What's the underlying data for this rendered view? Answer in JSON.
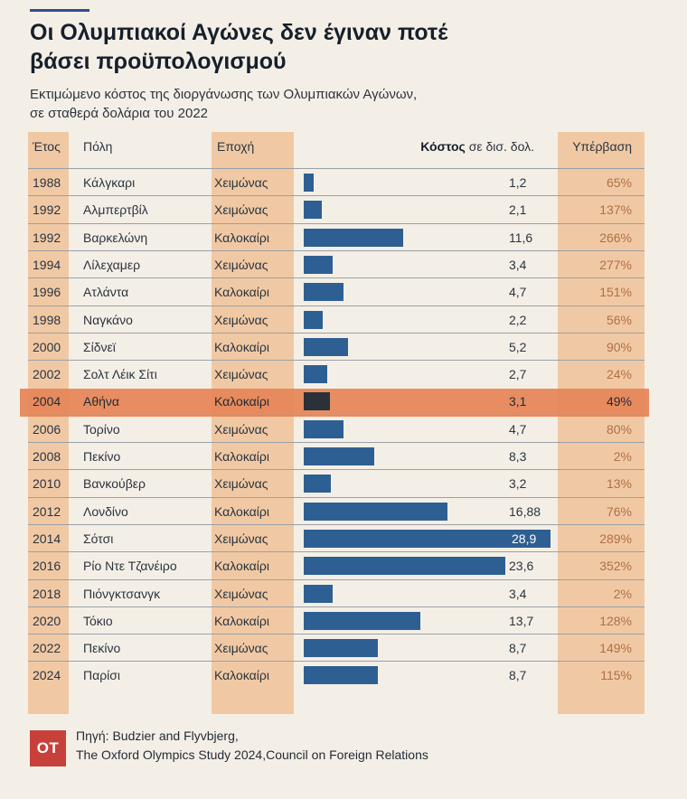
{
  "title_line1": "Οι Ολυμπιακοί Αγώνες δεν έγιναν ποτέ",
  "title_line2": "βάσει προϋπολογισμού",
  "subtitle_line1": "Εκτιμώμενο κόστος της διοργάνωσης των Ολυμπιακών Αγώνων,",
  "subtitle_line2": "σε σταθερά δολάρια του 2022",
  "headers": {
    "year": "Έτος",
    "city": "Πόλη",
    "season": "Εποχή",
    "cost_bold": "Κόστος",
    "cost_rest": " σε δισ. δολ.",
    "overrun": "Υπέρβαση"
  },
  "colors": {
    "bar": "#2e5f92",
    "highlight": "#e6875a",
    "highlight_bar": "#2b3138",
    "band": "#f0c9a4",
    "logo": "#c8403a"
  },
  "chart_data": {
    "type": "bar",
    "orientation": "horizontal",
    "title": "Οι Ολυμπιακοί Αγώνες δεν έγιναν ποτέ βάσει προϋπολογισμού",
    "subtitle": "Εκτιμώμενο κόστος της διοργάνωσης των Ολυμπιακών Αγώνων, σε σταθερά δολάρια του 2022",
    "xmax": 28.9,
    "rows": [
      {
        "year": "1988",
        "city": "Κάλγκαρι",
        "season": "Χειμώνας",
        "cost": 1.2,
        "cost_label": "1,2",
        "overrun": "65%"
      },
      {
        "year": "1992",
        "city": "Αλμπερτβίλ",
        "season": "Χειμώνας",
        "cost": 2.1,
        "cost_label": "2,1",
        "overrun": "137%"
      },
      {
        "year": "1992",
        "city": "Βαρκελώνη",
        "season": "Καλοκαίρι",
        "cost": 11.6,
        "cost_label": "11,6",
        "overrun": "266%"
      },
      {
        "year": "1994",
        "city": "Λίλεχαμερ",
        "season": "Χειμώνας",
        "cost": 3.4,
        "cost_label": "3,4",
        "overrun": "277%"
      },
      {
        "year": "1996",
        "city": "Ατλάντα",
        "season": "Καλοκαίρι",
        "cost": 4.7,
        "cost_label": "4,7",
        "overrun": "151%"
      },
      {
        "year": "1998",
        "city": "Ναγκάνο",
        "season": "Χειμώνας",
        "cost": 2.2,
        "cost_label": "2,2",
        "overrun": "56%"
      },
      {
        "year": "2000",
        "city": "Σίδνεϊ",
        "season": "Καλοκαίρι",
        "cost": 5.2,
        "cost_label": "5,2",
        "overrun": "90%"
      },
      {
        "year": "2002",
        "city": "Σολτ Λέικ Σίτι",
        "season": "Χειμώνας",
        "cost": 2.7,
        "cost_label": "2,7",
        "overrun": "24%"
      },
      {
        "year": "2004",
        "city": "Αθήνα",
        "season": "Καλοκαίρι",
        "cost": 3.1,
        "cost_label": "3,1",
        "overrun": "49%",
        "highlight": true
      },
      {
        "year": "2006",
        "city": "Τορίνο",
        "season": "Χειμώνας",
        "cost": 4.7,
        "cost_label": "4,7",
        "overrun": "80%"
      },
      {
        "year": "2008",
        "city": "Πεκίνο",
        "season": "Καλοκαίρι",
        "cost": 8.3,
        "cost_label": "8,3",
        "overrun": "2%"
      },
      {
        "year": "2010",
        "city": "Βανκούβερ",
        "season": "Χειμώνας",
        "cost": 3.2,
        "cost_label": "3,2",
        "overrun": "13%"
      },
      {
        "year": "2012",
        "city": "Λονδίνο",
        "season": "Καλοκαίρι",
        "cost": 16.88,
        "cost_label": "16,88",
        "overrun": "76%"
      },
      {
        "year": "2014",
        "city": "Σότσι",
        "season": "Χειμώνας",
        "cost": 28.9,
        "cost_label": "28,9",
        "overrun": "289%",
        "label_inside": true
      },
      {
        "year": "2016",
        "city": "Ρίο Ντε Τζανέιρο",
        "season": "Καλοκαίρι",
        "cost": 23.6,
        "cost_label": "23,6",
        "overrun": "352%"
      },
      {
        "year": "2018",
        "city": "Πιόνγκτσανγκ",
        "season": "Χειμώνας",
        "cost": 3.4,
        "cost_label": "3,4",
        "overrun": "2%"
      },
      {
        "year": "2020",
        "city": "Τόκιο",
        "season": "Καλοκαίρι",
        "cost": 13.7,
        "cost_label": "13,7",
        "overrun": "128%"
      },
      {
        "year": "2022",
        "city": "Πεκίνο",
        "season": "Χειμώνας",
        "cost": 8.7,
        "cost_label": "8,7",
        "overrun": "149%"
      },
      {
        "year": "2024",
        "city": "Παρίσι",
        "season": "Καλοκαίρι",
        "cost": 8.7,
        "cost_label": "8,7",
        "overrun": "115%"
      }
    ]
  },
  "footer": {
    "logo_text": "OT",
    "source_line1": "Πηγή: Budzier and Flyvbjerg,",
    "source_line2": "The Oxford Olympics Study 2024,Council on Foreign Relations"
  }
}
